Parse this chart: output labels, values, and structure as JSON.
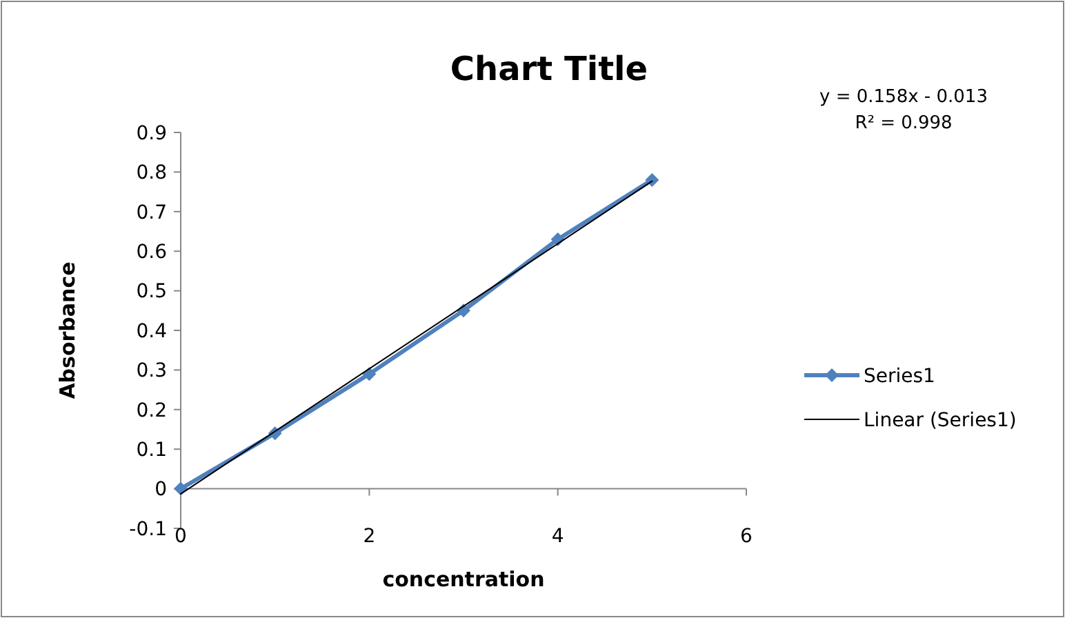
{
  "chart_data": {
    "type": "line",
    "title": "Chart Title",
    "xlabel": "concentration",
    "ylabel": "Absorbance",
    "annotations": [
      "y = 0.158x - 0.013",
      "R² = 0.998"
    ],
    "x": [
      0,
      1,
      2,
      3,
      4,
      5
    ],
    "series": [
      {
        "name": "Series1",
        "color": "#4f81bd",
        "values": [
          0,
          0.14,
          0.29,
          0.45,
          0.63,
          0.78
        ],
        "marker": "diamond"
      },
      {
        "name": "Linear (Series1)",
        "type": "line",
        "color": "#000000",
        "x": [
          0,
          5
        ],
        "values": [
          -0.013,
          0.777
        ],
        "marker": "none"
      }
    ],
    "xlim": [
      0,
      6
    ],
    "xticks": [
      0,
      2,
      4,
      6
    ],
    "ylim": [
      -0.1,
      0.9
    ],
    "yticks": [
      -0.1,
      0,
      0.1,
      0.2,
      0.3,
      0.4,
      0.5,
      0.6,
      0.7,
      0.8,
      0.9
    ],
    "grid": false,
    "legend": "right"
  }
}
